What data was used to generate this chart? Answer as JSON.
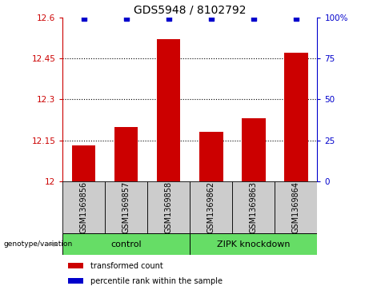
{
  "title": "GDS5948 / 8102792",
  "samples": [
    "GSM1369856",
    "GSM1369857",
    "GSM1369858",
    "GSM1369862",
    "GSM1369863",
    "GSM1369864"
  ],
  "bar_values": [
    12.13,
    12.2,
    12.52,
    12.18,
    12.23,
    12.47
  ],
  "percentile_values": [
    100,
    100,
    100,
    100,
    100,
    100
  ],
  "ylim_left": [
    12.0,
    12.6
  ],
  "ylim_right": [
    0,
    100
  ],
  "yticks_left": [
    12.0,
    12.15,
    12.3,
    12.45,
    12.6
  ],
  "yticks_right": [
    0,
    25,
    50,
    75,
    100
  ],
  "ytick_labels_left": [
    "12",
    "12.15",
    "12.3",
    "12.45",
    "12.6"
  ],
  "ytick_labels_right": [
    "0",
    "25",
    "50",
    "75",
    "100%"
  ],
  "hlines": [
    12.15,
    12.3,
    12.45
  ],
  "bar_color": "#cc0000",
  "percentile_color": "#0000cc",
  "groups": [
    {
      "label": "control",
      "span": [
        0,
        3
      ],
      "color": "#66dd66"
    },
    {
      "label": "ZIPK knockdown",
      "span": [
        3,
        6
      ],
      "color": "#66dd66"
    }
  ],
  "sample_box_color": "#cccccc",
  "legend_items": [
    {
      "color": "#cc0000",
      "label": "transformed count"
    },
    {
      "color": "#0000cc",
      "label": "percentile rank within the sample"
    }
  ],
  "genotype_label": "genotype/variation",
  "title_fontsize": 10,
  "tick_fontsize": 7.5,
  "sample_fontsize": 7,
  "group_fontsize": 8,
  "legend_fontsize": 7,
  "bar_width": 0.55
}
